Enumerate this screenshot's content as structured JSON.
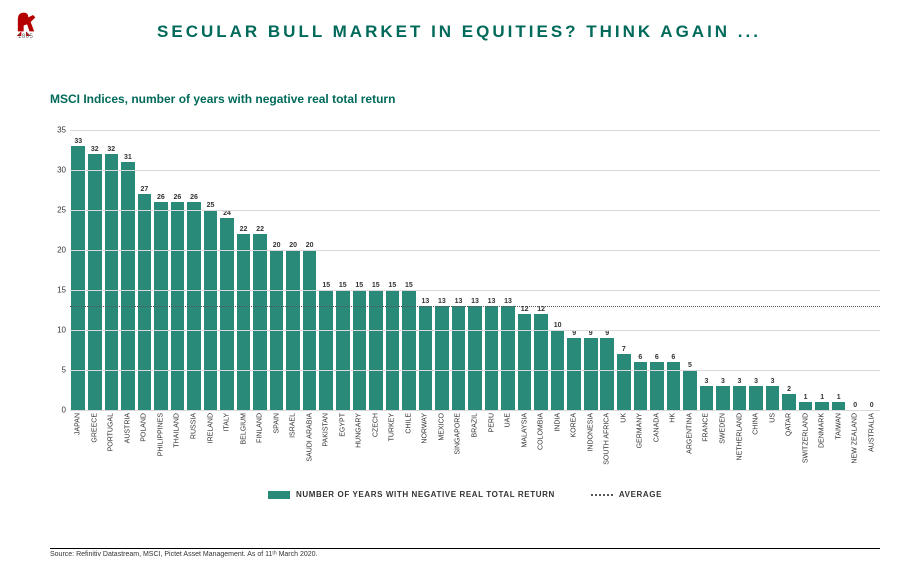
{
  "logo": {
    "year": "1805"
  },
  "title": "SECULAR BULL MARKET IN EQUITIES? THINK AGAIN ...",
  "subtitle": "MSCI Indices, number of years with negative real total return",
  "chart": {
    "type": "bar",
    "ylim": [
      0,
      35
    ],
    "ytick_step": 5,
    "average": 13,
    "bar_color": "#2a8a7a",
    "grid_color": "#d9d9d9",
    "avg_line_color": "#555555",
    "label_fontsize": 7,
    "value_fontsize": 7,
    "ytick_fontsize": 8,
    "data": [
      {
        "label": "JAPAN",
        "value": 33
      },
      {
        "label": "GREECE",
        "value": 32
      },
      {
        "label": "PORTUGAL",
        "value": 32
      },
      {
        "label": "AUSTRIA",
        "value": 31
      },
      {
        "label": "POLAND",
        "value": 27
      },
      {
        "label": "PHILIPPINES",
        "value": 26
      },
      {
        "label": "THAILAND",
        "value": 26
      },
      {
        "label": "RUSSIA",
        "value": 26
      },
      {
        "label": "IRELAND",
        "value": 25
      },
      {
        "label": "ITALY",
        "value": 24
      },
      {
        "label": "BELGIUM",
        "value": 22
      },
      {
        "label": "FINLAND",
        "value": 22
      },
      {
        "label": "SPAIN",
        "value": 20
      },
      {
        "label": "ISRAEL",
        "value": 20
      },
      {
        "label": "SAUDI ARABIA",
        "value": 20
      },
      {
        "label": "PAKISTAN",
        "value": 15
      },
      {
        "label": "EGYPT",
        "value": 15
      },
      {
        "label": "HUNGARY",
        "value": 15
      },
      {
        "label": "CZECH",
        "value": 15
      },
      {
        "label": "TURKEY",
        "value": 15
      },
      {
        "label": "CHILE",
        "value": 15
      },
      {
        "label": "NORWAY",
        "value": 13
      },
      {
        "label": "MEXICO",
        "value": 13
      },
      {
        "label": "SINGAPORE",
        "value": 13
      },
      {
        "label": "BRAZIL",
        "value": 13
      },
      {
        "label": "PERU",
        "value": 13
      },
      {
        "label": "UAE",
        "value": 13
      },
      {
        "label": "MALAYSIA",
        "value": 12
      },
      {
        "label": "COLOMBIA",
        "value": 12
      },
      {
        "label": "INDIA",
        "value": 10
      },
      {
        "label": "KOREA",
        "value": 9
      },
      {
        "label": "INDONESIA",
        "value": 9
      },
      {
        "label": "SOUTH AFRICA",
        "value": 9
      },
      {
        "label": "UK",
        "value": 7
      },
      {
        "label": "GERMANY",
        "value": 6
      },
      {
        "label": "CANADA",
        "value": 6
      },
      {
        "label": "HK",
        "value": 6
      },
      {
        "label": "ARGENTINA",
        "value": 5
      },
      {
        "label": "FRANCE",
        "value": 3
      },
      {
        "label": "SWEDEN",
        "value": 3
      },
      {
        "label": "NETHERLAND",
        "value": 3
      },
      {
        "label": "CHINA",
        "value": 3
      },
      {
        "label": "US",
        "value": 3
      },
      {
        "label": "QATAR",
        "value": 2
      },
      {
        "label": "SWITZERLAND",
        "value": 1
      },
      {
        "label": "DENMARK",
        "value": 1
      },
      {
        "label": "TAIWAN",
        "value": 1
      },
      {
        "label": "NEW ZEALAND",
        "value": 0
      },
      {
        "label": "AUSTRALIA",
        "value": 0
      }
    ]
  },
  "legend": {
    "series": "NUMBER OF YEARS WITH NEGATIVE REAL TOTAL RETURN",
    "avg": "AVERAGE"
  },
  "source": "Source: Refinitiv Datastream, MSCI, Pictet Asset Management. As of 11ᵗʰ March 2020."
}
